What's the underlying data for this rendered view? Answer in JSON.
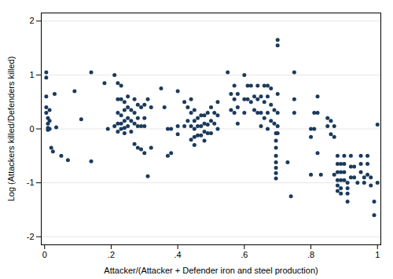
{
  "chart_data": {
    "type": "scatter",
    "xlabel": "Attacker/(Attacker + Defender iron and steel production)",
    "ylabel": "Log (Attackers killed/Defenders killed)",
    "xlim": [
      -0.01,
      1.01
    ],
    "ylim": [
      -2.15,
      2.15
    ],
    "xticks": [
      0,
      {
        "value": 0.2,
        "label": ".2"
      },
      {
        "value": 0.4,
        "label": ".4"
      },
      {
        "value": 0.6,
        "label": ".6"
      },
      {
        "value": 0.8,
        "label": ".8"
      },
      1
    ],
    "yticks": [
      -2,
      -1,
      0,
      1,
      2
    ],
    "grid": "y",
    "color": "#1b3a5c",
    "x": [
      0.005,
      0.005,
      0.005,
      0.005,
      0.005,
      0.01,
      0.01,
      0.01,
      0.01,
      0.015,
      0.015,
      0.015,
      0.02,
      0.025,
      0.03,
      0.035,
      0.05,
      0.07,
      0.09,
      0.11,
      0.14,
      0.14,
      0.18,
      0.19,
      0.21,
      0.21,
      0.22,
      0.22,
      0.22,
      0.22,
      0.22,
      0.23,
      0.23,
      0.23,
      0.23,
      0.23,
      0.24,
      0.24,
      0.24,
      0.24,
      0.24,
      0.25,
      0.25,
      0.25,
      0.25,
      0.26,
      0.26,
      0.26,
      0.27,
      0.27,
      0.27,
      0.27,
      0.28,
      0.28,
      0.28,
      0.28,
      0.29,
      0.29,
      0.29,
      0.3,
      0.3,
      0.3,
      0.3,
      0.31,
      0.31,
      0.32,
      0.32,
      0.35,
      0.36,
      0.37,
      0.37,
      0.38,
      0.38,
      0.4,
      0.4,
      0.4,
      0.42,
      0.42,
      0.43,
      0.43,
      0.44,
      0.44,
      0.44,
      0.44,
      0.45,
      0.45,
      0.45,
      0.45,
      0.45,
      0.46,
      0.46,
      0.46,
      0.47,
      0.47,
      0.47,
      0.48,
      0.48,
      0.48,
      0.48,
      0.49,
      0.49,
      0.49,
      0.5,
      0.5,
      0.5,
      0.51,
      0.51,
      0.52,
      0.52,
      0.52,
      0.55,
      0.56,
      0.56,
      0.57,
      0.57,
      0.57,
      0.58,
      0.58,
      0.58,
      0.6,
      0.6,
      0.6,
      0.61,
      0.61,
      0.62,
      0.62,
      0.63,
      0.63,
      0.64,
      0.64,
      0.64,
      0.65,
      0.65,
      0.65,
      0.66,
      0.66,
      0.66,
      0.67,
      0.67,
      0.67,
      0.67,
      0.68,
      0.68,
      0.68,
      0.69,
      0.69,
      0.695,
      0.695,
      0.695,
      0.695,
      0.695,
      0.695,
      0.695,
      0.695,
      0.7,
      0.7,
      0.7,
      0.7,
      0.7,
      0.7,
      0.73,
      0.74,
      0.75,
      0.75,
      0.75,
      0.8,
      0.8,
      0.8,
      0.81,
      0.81,
      0.82,
      0.82,
      0.82,
      0.83,
      0.85,
      0.85,
      0.86,
      0.86,
      0.87,
      0.87,
      0.87,
      0.88,
      0.88,
      0.88,
      0.88,
      0.88,
      0.88,
      0.89,
      0.89,
      0.89,
      0.89,
      0.89,
      0.9,
      0.9,
      0.9,
      0.9,
      0.91,
      0.91,
      0.91,
      0.91,
      0.92,
      0.92,
      0.92,
      0.93,
      0.93,
      0.94,
      0.95,
      0.95,
      0.95,
      0.96,
      0.96,
      0.97,
      0.97,
      0.97,
      0.98,
      0.98,
      0.99,
      0.99,
      1.0,
      1.0
    ],
    "values": [
      1.05,
      0.95,
      0.6,
      0.4,
      0.3,
      0.2,
      0.1,
      0.02,
      -0.02,
      0.35,
      0.15,
      0.0,
      -0.35,
      -0.42,
      0.65,
      0.03,
      -0.5,
      -0.58,
      0.7,
      0.18,
      -0.6,
      1.05,
      0.85,
      0.0,
      1.0,
      0.05,
      0.85,
      0.55,
      0.3,
      0.1,
      -0.05,
      0.8,
      0.55,
      0.25,
      0.1,
      0.0,
      0.5,
      0.35,
      0.15,
      0.02,
      -0.08,
      0.6,
      0.4,
      0.2,
      0.05,
      0.35,
      0.15,
      -0.05,
      0.55,
      0.3,
      0.1,
      -0.28,
      0.45,
      0.2,
      0.05,
      -0.35,
      0.4,
      0.05,
      -0.38,
      0.45,
      0.2,
      0.05,
      -0.45,
      0.55,
      -0.88,
      0.4,
      -0.35,
      0.75,
      0.4,
      0.0,
      -0.5,
      0.0,
      -0.45,
      0.7,
      0.05,
      -0.1,
      0.5,
      0.05,
      0.4,
      0.15,
      0.55,
      0.3,
      0.05,
      -0.2,
      0.35,
      0.15,
      0.0,
      -0.15,
      -0.3,
      0.2,
      0.05,
      -0.12,
      0.25,
      0.05,
      -0.12,
      0.25,
      0.1,
      -0.05,
      -0.22,
      0.3,
      0.08,
      -0.08,
      0.4,
      0.15,
      -0.08,
      0.3,
      0.1,
      0.5,
      0.25,
      0.0,
      1.05,
      0.65,
      0.35,
      0.8,
      0.55,
      0.3,
      0.65,
      0.4,
      0.1,
      1.0,
      0.55,
      0.3,
      0.8,
      0.55,
      0.8,
      0.5,
      0.6,
      0.35,
      0.8,
      0.55,
      0.3,
      0.6,
      0.3,
      0.05,
      0.8,
      0.5,
      0.2,
      0.8,
      0.6,
      0.3,
      0.0,
      0.75,
      0.45,
      0.15,
      0.35,
      0.1,
      -0.08,
      -0.22,
      -0.35,
      -0.5,
      -0.62,
      -0.72,
      -0.82,
      -0.92,
      1.65,
      1.55,
      0.65,
      0.3,
      0.05,
      -0.08,
      -0.62,
      -1.25,
      1.05,
      0.55,
      0.3,
      0.0,
      -0.15,
      -0.85,
      0.3,
      0.0,
      0.6,
      0.3,
      -0.45,
      -0.85,
      0.2,
      0.05,
      0.15,
      -0.1,
      0.05,
      -0.15,
      -0.85,
      -0.5,
      -0.65,
      -0.8,
      -0.95,
      -1.05,
      -1.15,
      -0.65,
      -0.8,
      -0.95,
      -1.1,
      -1.2,
      -0.5,
      -0.65,
      -0.8,
      -0.95,
      -1.0,
      -1.1,
      -1.2,
      -1.35,
      -0.5,
      -0.7,
      -0.9,
      -0.7,
      -0.9,
      -1.0,
      -0.5,
      -0.65,
      -0.8,
      -0.9,
      -1.0,
      -0.5,
      -0.65,
      -0.85,
      -0.9,
      -1.05,
      -1.35,
      -1.6,
      0.08,
      -1.0
    ]
  }
}
